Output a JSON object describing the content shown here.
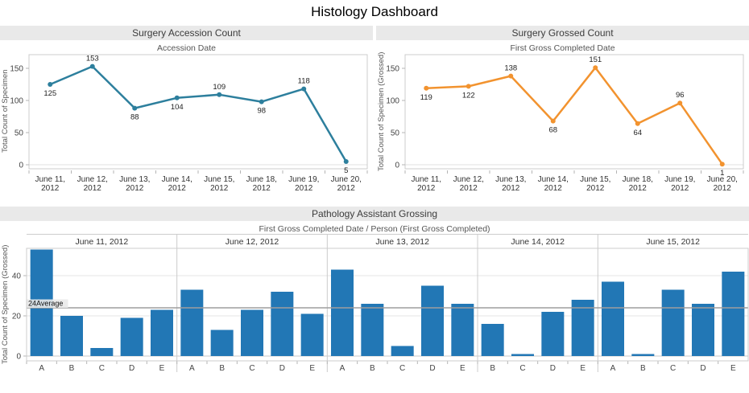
{
  "page": {
    "title": "Histology Dashboard"
  },
  "colors": {
    "accession_line": "#2d7f9d",
    "grossed_line": "#f2932f",
    "bar_fill": "#2277b5",
    "panel_header_bg": "#e9e9e9",
    "reference_line": "#9e9e9e",
    "plot_border": "#cccccc",
    "grid": "#e4e4e4",
    "tick_text": "#444444",
    "label_text": "#1f1f1f"
  },
  "chart_data": [
    {
      "type": "line",
      "title": "Surgery Accession Count",
      "subtitle": "Accession Date",
      "ylabel": "Total Count of Specimen",
      "x": [
        "June 11, 2012",
        "June 12, 2012",
        "June 13, 2012",
        "June 14, 2012",
        "June 15, 2012",
        "June 18, 2012",
        "June 19, 2012",
        "June 20, 2012"
      ],
      "values": [
        125,
        153,
        88,
        104,
        109,
        98,
        118,
        5
      ],
      "yticks": [
        0,
        50,
        100,
        150
      ],
      "ylim": [
        0,
        170
      ],
      "color": "#2d7f9d",
      "markers": true,
      "point_labels": true,
      "grid": "zero-line-only",
      "legend": "none"
    },
    {
      "type": "line",
      "title": "Surgery Grossed Count",
      "subtitle": "First Gross Completed Date",
      "ylabel": "Total Count of Specimen (Grossed)",
      "x": [
        "June 11, 2012",
        "June 12, 2012",
        "June 13, 2012",
        "June 14, 2012",
        "June 15, 2012",
        "June 18, 2012",
        "June 19, 2012",
        "June 20, 2012"
      ],
      "values": [
        119,
        122,
        138,
        68,
        151,
        64,
        96,
        1
      ],
      "yticks": [
        0,
        50,
        100,
        150
      ],
      "ylim": [
        0,
        170
      ],
      "color": "#f2932f",
      "markers": true,
      "point_labels": true,
      "grid": "zero-line-only",
      "legend": "none"
    },
    {
      "type": "bar",
      "title": "Pathology Assistant Grossing",
      "subtitle": "First Gross Completed Date / Person (First Gross Completed)",
      "ylabel": "Total Count of Specimen (Grossed)",
      "yticks": [
        0,
        20,
        40
      ],
      "ylim": [
        0,
        54
      ],
      "bar_color": "#2277b5",
      "reference_line": {
        "value": 24,
        "label": "24Average"
      },
      "groups": [
        {
          "label": "June 11, 2012",
          "categories": [
            "A",
            "B",
            "C",
            "D",
            "E"
          ],
          "values": [
            53,
            20,
            4,
            19,
            23
          ]
        },
        {
          "label": "June 12, 2012",
          "categories": [
            "A",
            "B",
            "C",
            "D",
            "E"
          ],
          "values": [
            33,
            13,
            23,
            32,
            21
          ]
        },
        {
          "label": "June 13, 2012",
          "categories": [
            "A",
            "B",
            "C",
            "D",
            "E"
          ],
          "values": [
            43,
            26,
            5,
            35,
            26
          ]
        },
        {
          "label": "June 14, 2012",
          "categories": [
            "B",
            "C",
            "D",
            "E"
          ],
          "values": [
            16,
            1,
            22,
            28
          ]
        },
        {
          "label": "June 15, 2012",
          "categories": [
            "A",
            "B",
            "C",
            "D",
            "E"
          ],
          "values": [
            37,
            1,
            33,
            26,
            42
          ]
        }
      ],
      "legend": "none"
    }
  ]
}
